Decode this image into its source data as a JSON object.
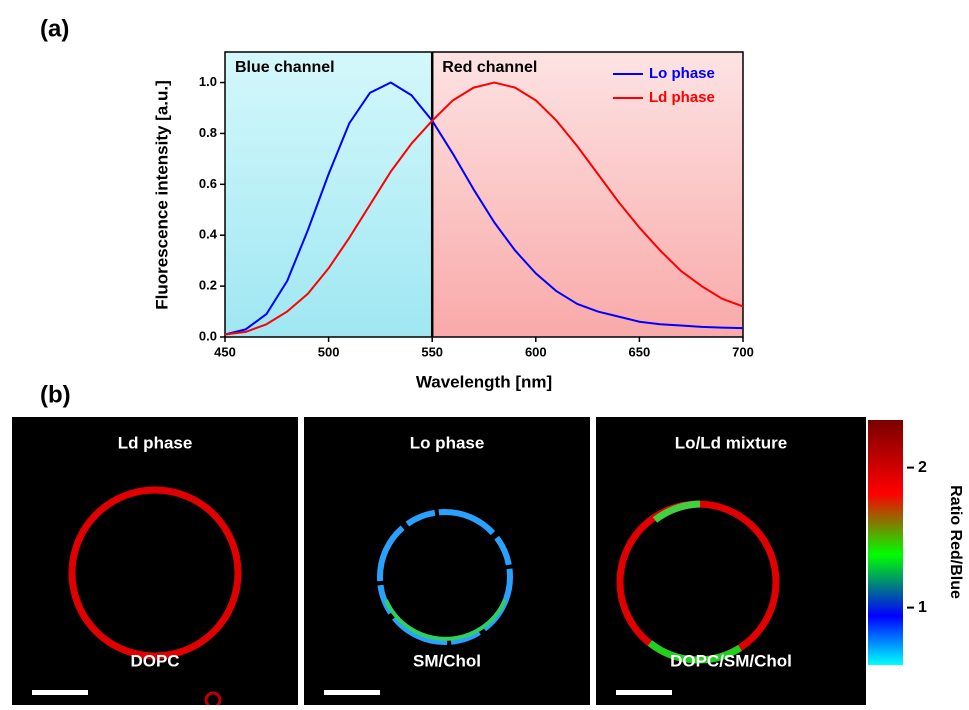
{
  "chart_data": {
    "type": "line",
    "panel_label": "(a)",
    "xlabel": "Wavelength [nm]",
    "ylabel": "Fluorescence intensity [a.u.]",
    "x": [
      450,
      460,
      470,
      480,
      490,
      500,
      510,
      520,
      530,
      540,
      550,
      560,
      570,
      580,
      590,
      600,
      610,
      620,
      630,
      640,
      650,
      660,
      670,
      680,
      690,
      700
    ],
    "series": [
      {
        "name": "Lo phase",
        "color": "#0000ff",
        "values": [
          0.01,
          0.03,
          0.09,
          0.22,
          0.42,
          0.64,
          0.84,
          0.96,
          1.0,
          0.95,
          0.85,
          0.72,
          0.58,
          0.45,
          0.34,
          0.25,
          0.18,
          0.13,
          0.1,
          0.08,
          0.06,
          0.05,
          0.045,
          0.04,
          0.037,
          0.035
        ]
      },
      {
        "name": "Ld phase",
        "color": "#ff0000",
        "values": [
          0.01,
          0.02,
          0.05,
          0.1,
          0.17,
          0.27,
          0.39,
          0.52,
          0.65,
          0.76,
          0.85,
          0.93,
          0.98,
          1.0,
          0.98,
          0.93,
          0.85,
          0.75,
          0.64,
          0.53,
          0.43,
          0.34,
          0.26,
          0.2,
          0.15,
          0.12
        ]
      }
    ],
    "regions": [
      {
        "name": "Blue channel",
        "range": [
          450,
          550
        ],
        "color": "#b5f0f7"
      },
      {
        "name": "Red channel",
        "range": [
          550,
          700
        ],
        "color": "#fbc4c4"
      }
    ],
    "xlim": [
      450,
      700
    ],
    "xticks": [
      450,
      500,
      550,
      600,
      650,
      700
    ],
    "ylim": [
      0,
      1.12
    ],
    "yticks": [
      {
        "value": 0,
        "label": "0.0"
      },
      0.2,
      0.4,
      0.6,
      0.8,
      {
        "value": 1,
        "label": "1.0"
      }
    ],
    "legend": "upper-right"
  },
  "images": {
    "panel_label": "(b)",
    "panels": [
      {
        "title": "Ld phase",
        "sample": "DOPC"
      },
      {
        "title": "Lo phase",
        "sample": "SM/Chol"
      },
      {
        "title": "Lo/Ld mixture",
        "sample": "DOPC/SM/Chol"
      }
    ],
    "colorbar": {
      "label": "Ratio Red/Blue",
      "lim": [
        0.59,
        2.34
      ],
      "ticks": [
        1,
        2
      ]
    }
  }
}
